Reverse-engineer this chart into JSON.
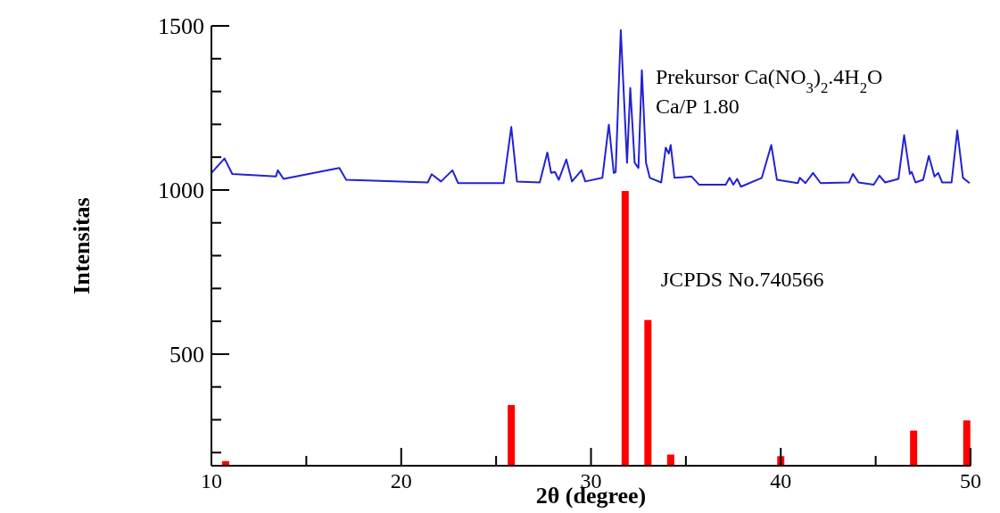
{
  "chart_data": {
    "type": "line",
    "xlabel": "2θ (degree)",
    "ylabel": "Intensitas",
    "xlim": [
      10,
      50
    ],
    "ylim": [
      160,
      1500
    ],
    "xticks": [
      10,
      {
        "value": 15,
        "label": null
      },
      20,
      {
        "value": 25,
        "label": null
      },
      30,
      {
        "value": 35,
        "label": null
      },
      40,
      {
        "value": 45,
        "label": null
      },
      50
    ],
    "yticks": [
      1500,
      {
        "value": 1400,
        "label": null
      },
      {
        "value": 1300,
        "label": null
      },
      {
        "value": 1200,
        "label": null
      },
      {
        "value": 1100,
        "label": null
      },
      1000,
      {
        "value": 900,
        "label": null
      },
      {
        "value": 800,
        "label": null
      },
      {
        "value": 700,
        "label": null
      },
      {
        "value": 600,
        "label": null
      },
      500,
      {
        "value": 400,
        "label": null
      },
      {
        "value": 300,
        "label": null
      },
      {
        "value": 200,
        "label": null
      }
    ],
    "grid": false,
    "legend": false,
    "annotations": [
      "Ca/P 1.80"
    ],
    "series": [
      {
        "name": "Prekursor Ca(NO$_{3}$)$_{2}$.4H$_{2}$O",
        "color": "#2222d4",
        "x": [
          10.0,
          10.69,
          11.1,
          13.4,
          13.5,
          13.8,
          16.74,
          17.1,
          21.4,
          21.6,
          22.1,
          22.7,
          23.0,
          25.4,
          25.8,
          26.1,
          27.3,
          27.7,
          27.9,
          28.1,
          28.3,
          28.7,
          29.0,
          29.5,
          29.7,
          30.6,
          30.94,
          31.2,
          31.3,
          31.57,
          31.9,
          32.07,
          32.3,
          32.5,
          32.68,
          32.9,
          33.1,
          33.7,
          33.94,
          34.1,
          34.2,
          34.4,
          35.3,
          35.7,
          37.1,
          37.3,
          37.5,
          37.7,
          37.9,
          39.0,
          39.5,
          39.8,
          40.9,
          41.0,
          41.3,
          41.7,
          42.1,
          43.6,
          43.8,
          44.1,
          44.9,
          45.2,
          45.5,
          46.2,
          46.5,
          46.8,
          46.9,
          47.1,
          47.5,
          47.8,
          48.1,
          48.3,
          48.5,
          49.0,
          49.3,
          49.6,
          49.95
        ],
        "values": [
          1052,
          1096,
          1049,
          1041,
          1060,
          1034,
          1067,
          1031,
          1023,
          1048,
          1026,
          1060,
          1021,
          1021,
          1192,
          1026,
          1023,
          1114,
          1052,
          1055,
          1031,
          1093,
          1026,
          1060,
          1026,
          1037,
          1199,
          1052,
          1054,
          1487,
          1083,
          1311,
          1083,
          1067,
          1365,
          1083,
          1037,
          1023,
          1129,
          1111,
          1137,
          1037,
          1041,
          1016,
          1016,
          1037,
          1016,
          1034,
          1010,
          1037,
          1137,
          1031,
          1021,
          1037,
          1021,
          1052,
          1021,
          1023,
          1049,
          1023,
          1016,
          1044,
          1023,
          1034,
          1167,
          1049,
          1055,
          1023,
          1031,
          1104,
          1041,
          1052,
          1023,
          1023,
          1181,
          1037,
          1021
        ]
      },
      {
        "name": "JCPDS No.740566",
        "type": "bar",
        "color": "#ff0000",
        "x": [
          10.75,
          25.8,
          31.8,
          33.0,
          34.2,
          40.0,
          47.0,
          49.8
        ],
        "values": [
          174,
          345,
          997,
          604,
          194,
          189,
          267,
          298
        ]
      }
    ]
  }
}
